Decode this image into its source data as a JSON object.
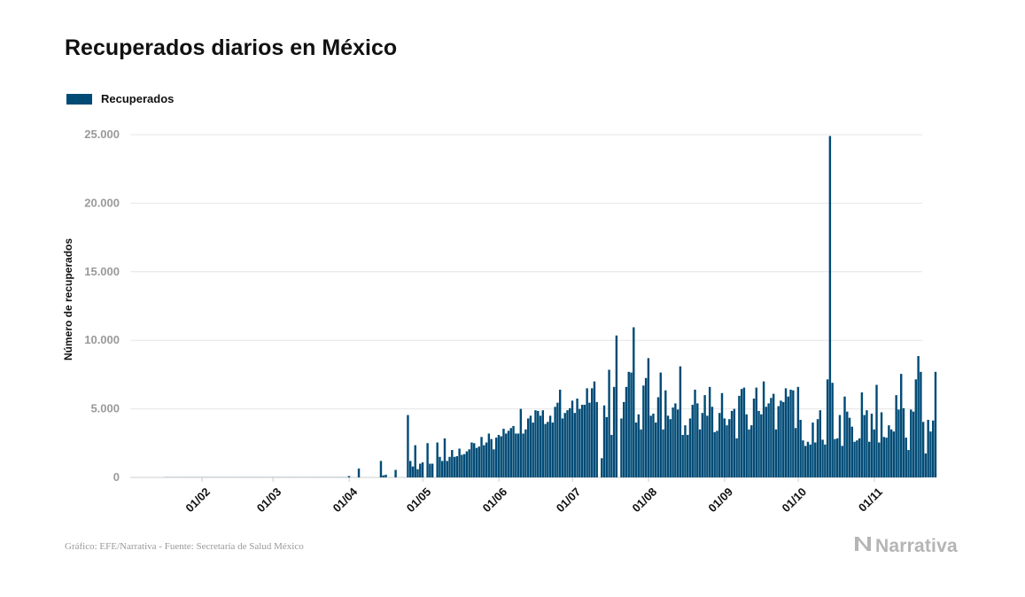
{
  "title": "Recuperados diarios en México",
  "source": "Gráfico: EFE/Narrativa - Fuente: Secretaría de Salud México",
  "brand": "Narrativa",
  "brand_icon": "narrativa-logo-icon",
  "colors": {
    "bar": "#004b76",
    "grid": "#e6e6e6",
    "axis": "#cccccc"
  },
  "chart_data": {
    "type": "bar",
    "title": "Recuperados diarios en México",
    "xlabel": "",
    "ylabel": "Número de recuperados",
    "ylim": [
      0,
      25000
    ],
    "yticks": [
      0,
      5000,
      10000,
      15000,
      20000,
      25000
    ],
    "ytick_labels": [
      "0",
      "5.000",
      "10.000",
      "15.000",
      "20.000",
      "25.000"
    ],
    "xtick_labels": [
      "01/02",
      "01/03",
      "01/04",
      "01/05",
      "01/06",
      "01/07",
      "01/08",
      "01/09",
      "01/10",
      "01/11"
    ],
    "xtick_day_index": [
      15,
      44,
      75,
      105,
      136,
      166,
      197,
      228,
      258,
      289
    ],
    "legend": "top-left",
    "grid": true,
    "series": [
      {
        "name": "Recuperados",
        "values": [
          10,
          10,
          10,
          10,
          10,
          10,
          10,
          10,
          10,
          10,
          10,
          10,
          10,
          10,
          10,
          10,
          10,
          10,
          10,
          10,
          10,
          10,
          10,
          10,
          10,
          10,
          10,
          10,
          10,
          10,
          10,
          10,
          10,
          10,
          10,
          10,
          10,
          10,
          10,
          10,
          10,
          10,
          10,
          10,
          10,
          10,
          10,
          10,
          10,
          10,
          10,
          10,
          10,
          10,
          10,
          10,
          10,
          10,
          10,
          10,
          10,
          10,
          10,
          10,
          10,
          10,
          10,
          10,
          10,
          10,
          10,
          10,
          10,
          10,
          10,
          100,
          0,
          0,
          0,
          650,
          0,
          0,
          0,
          0,
          0,
          0,
          0,
          0,
          1200,
          150,
          200,
          0,
          0,
          0,
          550,
          0,
          0,
          0,
          0,
          4550,
          1200,
          800,
          2350,
          600,
          1000,
          1100,
          0,
          2500,
          1000,
          1000,
          0,
          2550,
          1500,
          1200,
          2850,
          1200,
          1500,
          2000,
          1500,
          1550,
          2100,
          1650,
          1700,
          1900,
          2050,
          2550,
          2500,
          2150,
          2250,
          2950,
          2350,
          2550,
          3200,
          2800,
          2050,
          2900,
          3100,
          3000,
          3550,
          3200,
          3400,
          3600,
          3750,
          3200,
          3200,
          5000,
          3200,
          3500,
          4300,
          4500,
          4000,
          4900,
          4850,
          4500,
          4900,
          3900,
          4050,
          4500,
          4000,
          5150,
          5450,
          6400,
          4300,
          4700,
          4900,
          5050,
          5600,
          4700,
          5750,
          5000,
          5300,
          5300,
          6500,
          5450,
          6500,
          7000,
          5500,
          0,
          1400,
          5250,
          4400,
          7850,
          3100,
          6600,
          10350,
          0,
          4300,
          5500,
          6600,
          7700,
          7650,
          10950,
          4000,
          4600,
          3500,
          6700,
          7250,
          8700,
          4500,
          4650,
          4000,
          5850,
          7650,
          3500,
          6350,
          4500,
          4250,
          5100,
          5400,
          4950,
          8100,
          3100,
          3800,
          3100,
          4300,
          5300,
          6400,
          5400,
          3500,
          4700,
          6000,
          4500,
          6600,
          5150,
          3300,
          3400,
          4700,
          6150,
          4300,
          3800,
          4250,
          4850,
          5000,
          2850,
          5950,
          6450,
          6550,
          4600,
          3500,
          3800,
          5750,
          6550,
          4850,
          4600,
          7000,
          5150,
          5400,
          5800,
          6100,
          3500,
          5200,
          5600,
          5500,
          6500,
          5900,
          6400,
          6350,
          3600,
          6600,
          4200,
          2700,
          2300,
          2600,
          2400,
          4000,
          2550,
          4250,
          4900,
          2750,
          2400,
          7150,
          24900,
          6900,
          2800,
          2850,
          4550,
          2300,
          5900,
          4800,
          4350,
          3700,
          2600,
          2700,
          2850,
          6200,
          4550,
          4900,
          2600,
          4650,
          3500,
          6750,
          2550,
          4750,
          2950,
          2900,
          3800,
          3500,
          3350,
          6000,
          4950,
          7550,
          5050,
          2900,
          2000,
          4950,
          4800,
          7150,
          8850,
          7700,
          4050,
          1750,
          4200,
          3350,
          4150,
          7700
        ]
      }
    ]
  }
}
